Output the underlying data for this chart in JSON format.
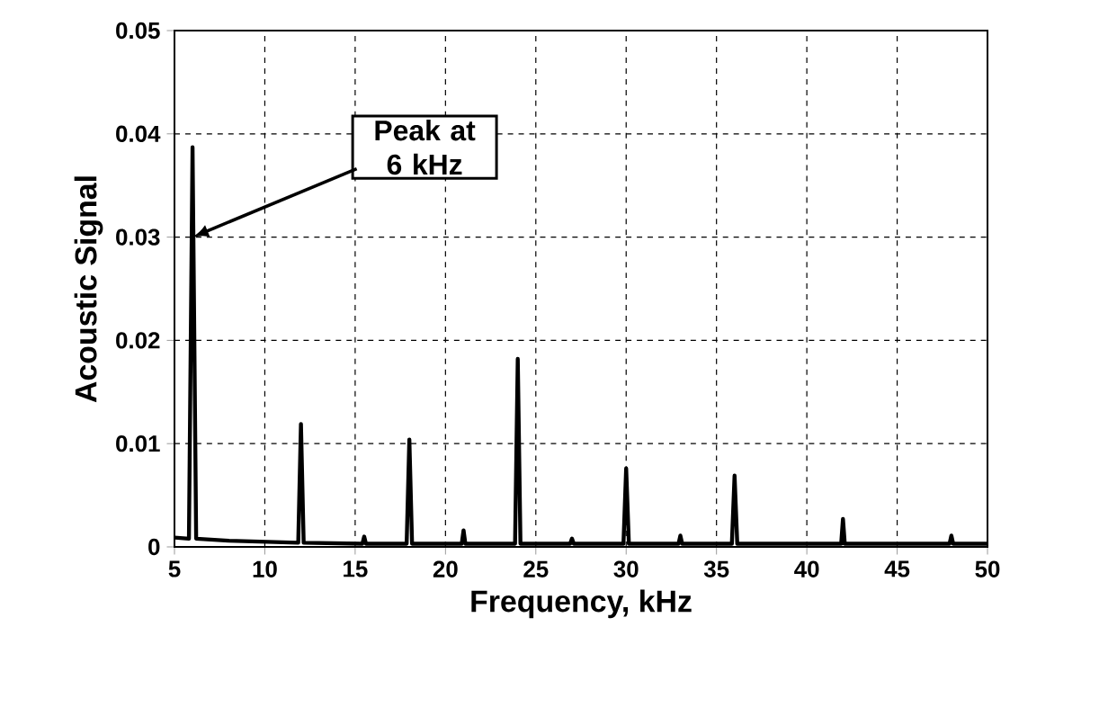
{
  "chart_data": {
    "type": "line",
    "xlabel": "Frequency, kHz",
    "ylabel": "Acoustic Signal",
    "xlim": [
      5,
      50
    ],
    "ylim": [
      0,
      0.05
    ],
    "xticks": [
      5,
      10,
      15,
      20,
      25,
      30,
      35,
      40,
      45,
      50
    ],
    "yticks": [
      0,
      0.01,
      0.02,
      0.03,
      0.04,
      0.05
    ],
    "grid": true,
    "annotations": [
      {
        "text": "Peak at 6 kHz",
        "x": 6,
        "y": 0.03
      }
    ],
    "series": [
      {
        "color": "#000000",
        "x": [
          5,
          5.8,
          6,
          6.2,
          8,
          11.85,
          12,
          12.15,
          15.4,
          15.5,
          15.6,
          17.85,
          18,
          18.15,
          20.9,
          21,
          21.1,
          23.85,
          24,
          24.15,
          26.9,
          27,
          27.1,
          29.85,
          30,
          30.15,
          32.9,
          33,
          33.1,
          35.85,
          36,
          36.15,
          41.9,
          42,
          42.1,
          47.9,
          48,
          48.1,
          50
        ],
        "values": [
          0.0009,
          0.0008,
          0.0387,
          0.0008,
          0.0006,
          0.0004,
          0.0119,
          0.0004,
          0.0003,
          0.001,
          0.0003,
          0.0003,
          0.0104,
          0.0003,
          0.0003,
          0.0016,
          0.0003,
          0.0003,
          0.0182,
          0.0003,
          0.0003,
          0.0008,
          0.0003,
          0.0003,
          0.0076,
          0.0003,
          0.0003,
          0.0011,
          0.0003,
          0.0003,
          0.0069,
          0.0003,
          0.0003,
          0.0027,
          0.0003,
          0.0003,
          0.0011,
          0.0003,
          0.0003
        ]
      }
    ]
  }
}
